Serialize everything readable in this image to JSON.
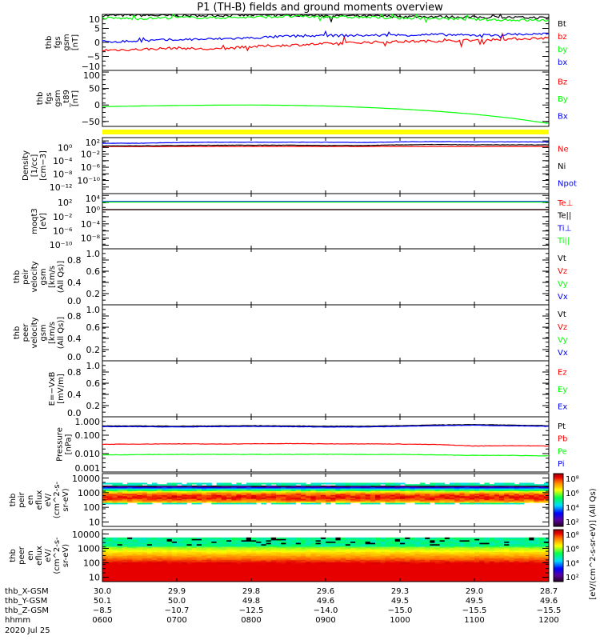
{
  "title": "P1 (TH-B) fields and ground moments overview",
  "colors": {
    "black": "#000000",
    "red": "#ff0000",
    "green": "#00ff00",
    "blue": "#0000ff",
    "yellow": "#ffff00"
  },
  "chart_data": [
    {
      "type": "line",
      "id": "fgs",
      "ylabel": [
        "thb",
        "fgs",
        "gsm",
        "[nT]"
      ],
      "scale": "linear",
      "ylim": [
        -10,
        10
      ],
      "ticks": [
        "10",
        "5",
        "0",
        "−5",
        "−10"
      ],
      "tickvals": [
        10,
        5,
        0,
        -5,
        -10
      ],
      "series": [
        {
          "name": "Bt",
          "color": "#000000",
          "values": [
            9.6,
            9.7,
            9.5,
            9.6,
            9.7,
            9.8,
            9.6,
            9.4,
            9.3,
            9.2,
            9.0,
            8.9,
            8.8
          ]
        },
        {
          "name": "bz",
          "color": "#ff0000",
          "values": [
            -2.8,
            -2.5,
            -2.0,
            -2.5,
            -1.5,
            -1.0,
            -0.5,
            0.0,
            0.3,
            0.5,
            0.8,
            1.2,
            1.6
          ]
        },
        {
          "name": "by",
          "color": "#00ff00",
          "values": [
            8.7,
            8.5,
            8.9,
            8.8,
            9.0,
            9.3,
            9.1,
            9.0,
            8.7,
            8.6,
            8.2,
            8.0,
            7.9
          ]
        },
        {
          "name": "bx",
          "color": "#0000ff",
          "values": [
            0.2,
            0.5,
            1.0,
            1.2,
            1.6,
            2.2,
            2.4,
            2.5,
            2.6,
            2.8,
            2.5,
            2.9,
            3.0
          ]
        }
      ]
    },
    {
      "type": "line",
      "id": "t89",
      "ylabel": [
        "thb",
        "fgs",
        "gsm",
        "_t89",
        "[nT]"
      ],
      "scale": "linear",
      "ylim": [
        -65,
        105
      ],
      "ticks": [
        "100",
        "50",
        "0",
        "−50"
      ],
      "tickvals": [
        100,
        50,
        0,
        -50
      ],
      "series": [
        {
          "name": "Bz",
          "color": "#ff0000",
          "values": []
        },
        {
          "name": "By",
          "color": "#00ff00",
          "values": [
            -5,
            -3,
            -1.5,
            -0.5,
            0,
            -1,
            -3,
            -7,
            -12,
            -19,
            -28,
            -40,
            -56
          ]
        },
        {
          "name": "Bx",
          "color": "#0000ff",
          "values": []
        }
      ]
    },
    {
      "type": "line",
      "id": "density",
      "ylabel": [
        "Density",
        "[1/cc]",
        "[cm−3]"
      ],
      "scale": "log",
      "ylim": [
        -14,
        3
      ],
      "ticks": [
        "10²",
        "10⁰",
        "10⁻²",
        "10⁻⁴",
        "10⁻⁶",
        "10⁻⁸",
        "10⁻¹⁰",
        "10⁻¹²"
      ],
      "tickvals": [
        2,
        0,
        -2,
        -4,
        -6,
        -8,
        -10,
        -12
      ],
      "series": [
        {
          "name": "Ne",
          "color": "#ff0000",
          "values": [
            0.3,
            0.3,
            0.3,
            0.3,
            0.3,
            0.3,
            0.3,
            0.3,
            0.3,
            0.3,
            0.3,
            0.3,
            0.3
          ]
        },
        {
          "name": "Ni",
          "color": "#000000",
          "values": [
            0.5,
            0.5,
            0.6,
            0.7,
            0.7,
            0.7,
            0.6,
            0.6,
            0.8,
            0.9,
            0.8,
            0.8,
            0.8
          ]
        },
        {
          "name": "Npot",
          "color": "#0000ff",
          "values": [
            1.3,
            1.3,
            1.5,
            1.6,
            1.6,
            1.6,
            1.6,
            1.5,
            1.7,
            1.8,
            1.7,
            1.7,
            1.7
          ]
        }
      ]
    },
    {
      "type": "line",
      "id": "temp",
      "ylabel": [
        "moqt3",
        "[eV]"
      ],
      "scale": "log",
      "ylim": [
        -11,
        4.5
      ],
      "ticks": [
        "10⁴",
        "10²",
        "10⁰",
        "10⁻²",
        "10⁻⁴",
        "10⁻⁶",
        "10⁻⁸",
        "10⁻¹⁰"
      ],
      "tickvals": [
        4,
        2,
        0,
        -2,
        -4,
        -6,
        -8,
        -10
      ],
      "series": [
        {
          "name": "Te⊥",
          "color": "#ff0000",
          "values": [
            0,
            0,
            0,
            0,
            0,
            0,
            0,
            0,
            0,
            0,
            0,
            0,
            0
          ]
        },
        {
          "name": "Te||",
          "color": "#000000",
          "values": [
            0,
            0,
            0,
            0,
            0,
            0,
            0,
            0,
            0,
            0,
            0,
            0,
            0
          ]
        },
        {
          "name": "Ti⊥",
          "color": "#0000ff",
          "values": [
            2.3,
            2.3,
            2.3,
            2.3,
            2.3,
            2.3,
            2.3,
            2.3,
            2.3,
            2.3,
            2.3,
            2.3,
            2.3
          ]
        },
        {
          "name": "Ti||",
          "color": "#00ff00",
          "values": [
            2.1,
            2.1,
            2.1,
            2.1,
            2.1,
            2.1,
            2.1,
            2.1,
            2.1,
            2.1,
            2.1,
            2.1,
            2.1
          ]
        }
      ]
    },
    {
      "type": "line",
      "id": "vi",
      "ylabel": [
        "thb",
        "peir",
        "velocity",
        "gsm",
        "[km/s (All Qs)]"
      ],
      "scale": "linear",
      "ylim": [
        0,
        1
      ],
      "ticks": [
        "1.0",
        "0.8",
        "0.6",
        "0.4",
        "0.2",
        "0.0"
      ],
      "tickvals": [
        1,
        0.8,
        0.6,
        0.4,
        0.2,
        0
      ],
      "series": [
        {
          "name": "Vt",
          "color": "#000000",
          "values": []
        },
        {
          "name": "Vz",
          "color": "#ff0000",
          "values": []
        },
        {
          "name": "Vy",
          "color": "#00ff00",
          "values": []
        },
        {
          "name": "Vx",
          "color": "#0000ff",
          "values": []
        }
      ]
    },
    {
      "type": "line",
      "id": "ve",
      "ylabel": [
        "thb",
        "peer",
        "velocity",
        "gsm",
        "[km/s (All Qs)]"
      ],
      "scale": "linear",
      "ylim": [
        0,
        1
      ],
      "ticks": [
        "1.0",
        "0.8",
        "0.6",
        "0.4",
        "0.2",
        "0.0"
      ],
      "tickvals": [
        1,
        0.8,
        0.6,
        0.4,
        0.2,
        0
      ],
      "series": [
        {
          "name": "Vt",
          "color": "#000000",
          "values": []
        },
        {
          "name": "Vz",
          "color": "#ff0000",
          "values": []
        },
        {
          "name": "Vy",
          "color": "#00ff00",
          "values": []
        },
        {
          "name": "Vx",
          "color": "#0000ff",
          "values": []
        }
      ]
    },
    {
      "type": "line",
      "id": "efield",
      "ylabel": [
        "E=−VxB",
        "[mV/m]"
      ],
      "scale": "linear",
      "ylim": [
        0,
        1
      ],
      "ticks": [
        "1.0",
        "0.8",
        "0.6",
        "0.4",
        "0.2",
        "0.0"
      ],
      "tickvals": [
        1,
        0.8,
        0.6,
        0.4,
        0.2,
        0
      ],
      "series": [
        {
          "name": "Ez",
          "color": "#ff0000",
          "values": []
        },
        {
          "name": "Ey",
          "color": "#00ff00",
          "values": []
        },
        {
          "name": "Ex",
          "color": "#0000ff",
          "values": []
        }
      ]
    },
    {
      "type": "line",
      "id": "pressure",
      "ylabel": [
        "Pressure",
        "[nPa]"
      ],
      "scale": "log",
      "ylim": [
        -3,
        0
      ],
      "ticks": [
        "1.000",
        "0.100",
        "0.010",
        "0.001"
      ],
      "tickvals": [
        0,
        -1,
        -2,
        -3
      ],
      "series": [
        {
          "name": "Pt",
          "color": "#000000",
          "values": [
            0.32,
            0.32,
            0.31,
            0.32,
            0.33,
            0.32,
            0.31,
            0.31,
            0.33,
            0.36,
            0.38,
            0.35,
            0.33
          ]
        },
        {
          "name": "Pb",
          "color": "#ff0000",
          "values": [
            0.032,
            0.033,
            0.034,
            0.033,
            0.034,
            0.035,
            0.034,
            0.034,
            0.033,
            0.031,
            0.026,
            0.027,
            0.026
          ]
        },
        {
          "name": "Pe",
          "color": "#00ff00",
          "values": [
            0.0085,
            0.0088,
            0.009,
            0.0092,
            0.009,
            0.009,
            0.0092,
            0.009,
            0.009,
            0.0085,
            0.008,
            0.008,
            0.0075
          ]
        },
        {
          "name": "Pi",
          "color": "#0000ff",
          "values": [
            0.29,
            0.29,
            0.28,
            0.29,
            0.3,
            0.29,
            0.28,
            0.28,
            0.3,
            0.33,
            0.35,
            0.32,
            0.3
          ]
        }
      ]
    },
    {
      "type": "heatmap",
      "id": "ion_spec",
      "ylabel": [
        "thb",
        "peir",
        "en",
        "eflux",
        "eV/",
        "(cm^2-s-",
        "sr-eV)"
      ],
      "scale": "log",
      "ylim": [
        5,
        20000
      ],
      "ticks": [
        "10000",
        "1000",
        "100",
        "10"
      ],
      "tickvals": [
        4,
        3,
        2,
        1
      ],
      "description_values": {
        "peak_energy_eV": 500,
        "peak_log_eflux": 7.5,
        "energy_range_eV": [
          150,
          5000
        ]
      },
      "colorbar": {
        "ticks": [
          "10⁸",
          "10⁶",
          "10⁴",
          "10²"
        ]
      }
    },
    {
      "type": "heatmap",
      "id": "electron_spec",
      "ylabel": [
        "thb",
        "peer",
        "en",
        "eflux",
        "eV/",
        "(cm^2-s-",
        "sr-eV)"
      ],
      "scale": "log",
      "ylim": [
        5,
        20000
      ],
      "ticks": [
        "10000",
        "1000",
        "100",
        "10"
      ],
      "tickvals": [
        4,
        3,
        2,
        1
      ],
      "description_values": {
        "peak_energy_eV": 10,
        "peak_log_eflux": 8,
        "energy_range_eV": [
          5,
          6000
        ]
      },
      "colorbar": {
        "ticks": [
          "10⁸",
          "10⁶",
          "10⁴",
          "10²"
        ]
      }
    }
  ],
  "colorbar_label": "[eV/(cm^2-s-sr-eV)] (All Qs)",
  "xaxis": {
    "rows": [
      {
        "label": "thb_X-GSM",
        "values": [
          "30.0",
          "29.9",
          "29.8",
          "29.6",
          "29.3",
          "29.0",
          "28.7"
        ]
      },
      {
        "label": "thb_Y-GSM",
        "values": [
          "50.1",
          "50.0",
          "49.8",
          "49.6",
          "49.5",
          "49.5",
          "49.6"
        ]
      },
      {
        "label": "thb_Z-GSM",
        "values": [
          "−8.5",
          "−10.7",
          "−12.5",
          "−14.0",
          "−15.0",
          "−15.5",
          "−15.5"
        ]
      },
      {
        "label": "hhmm",
        "values": [
          "0600",
          "0700",
          "0800",
          "0900",
          "1000",
          "1100",
          "1200"
        ]
      }
    ],
    "date": "2020 Jul 25"
  }
}
